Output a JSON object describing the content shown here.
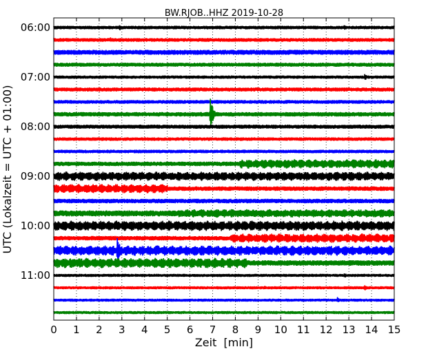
{
  "chart_data": {
    "type": "line",
    "title": "BW.RJOB..HHZ 2019-10-28",
    "xlabel": "Zeit  [min]",
    "ylabel": "UTC (Lokalzeit = UTC + 01:00)",
    "xlim": [
      0,
      15
    ],
    "x_ticks": [
      "0",
      "1",
      "2",
      "3",
      "4",
      "5",
      "6",
      "7",
      "8",
      "9",
      "10",
      "11",
      "12",
      "13",
      "14",
      "15"
    ],
    "y_ticks": [
      "06:00",
      "07:00",
      "08:00",
      "09:00",
      "10:00",
      "11:00"
    ],
    "y_tick_trace_index": [
      0,
      4,
      8,
      12,
      16,
      20
    ],
    "grid": "x-dotted",
    "trace_start": "06:00",
    "trace_minutes": 15,
    "colors": [
      "#000000",
      "#ff0000",
      "#0000ff",
      "#008000"
    ],
    "traces": [
      {
        "start": "06:00",
        "amplitude": 0.14,
        "events": [
          {
            "t": 2.9,
            "amp": 0.25
          },
          {
            "t": 12.8,
            "amp": 0.22
          }
        ]
      },
      {
        "start": "06:15",
        "amplitude": 0.15,
        "events": [
          {
            "t": 2.5,
            "amp": 0.25
          }
        ]
      },
      {
        "start": "06:30",
        "amplitude": 0.2,
        "events": []
      },
      {
        "start": "06:45",
        "amplitude": 0.16,
        "events": []
      },
      {
        "start": "07:00",
        "amplitude": 0.13,
        "events": [
          {
            "t": 13.7,
            "amp": 0.3
          }
        ]
      },
      {
        "start": "07:15",
        "amplitude": 0.16,
        "events": [
          {
            "t": 2.0,
            "amp": 0.25
          }
        ]
      },
      {
        "start": "07:30",
        "amplitude": 0.15,
        "events": []
      },
      {
        "start": "07:45",
        "amplitude": 0.18,
        "events": [
          {
            "t": 6.9,
            "amp": 1.45
          }
        ]
      },
      {
        "start": "08:00",
        "amplitude": 0.16,
        "events": []
      },
      {
        "start": "08:15",
        "amplitude": 0.14,
        "events": []
      },
      {
        "start": "08:30",
        "amplitude": 0.14,
        "events": []
      },
      {
        "start": "08:45",
        "amplitude": 0.18,
        "events": [],
        "swell": {
          "from": 8.2,
          "to": 15,
          "amp": 0.38
        }
      },
      {
        "start": "09:00",
        "amplitude": 0.18,
        "events": [],
        "swell": {
          "from": 0,
          "to": 15,
          "amp": 0.38
        }
      },
      {
        "start": "09:15",
        "amplitude": 0.18,
        "events": [],
        "swell": {
          "from": 0,
          "to": 5,
          "amp": 0.38
        }
      },
      {
        "start": "09:30",
        "amplitude": 0.18,
        "events": []
      },
      {
        "start": "09:45",
        "amplitude": 0.24,
        "events": [],
        "swell": {
          "from": 5.5,
          "to": 15,
          "amp": 0.34
        }
      },
      {
        "start": "10:00",
        "amplitude": 0.18,
        "events": [],
        "swell": {
          "from": 0,
          "to": 15,
          "amp": 0.42
        }
      },
      {
        "start": "10:15",
        "amplitude": 0.18,
        "events": [],
        "swell": {
          "from": 7.8,
          "to": 15,
          "amp": 0.38
        }
      },
      {
        "start": "10:30",
        "amplitude": 0.2,
        "events": [
          {
            "t": 2.8,
            "amp": 1.25
          }
        ],
        "swell": {
          "from": 0,
          "to": 15,
          "amp": 0.42
        }
      },
      {
        "start": "10:45",
        "amplitude": 0.22,
        "events": [],
        "swell": {
          "from": 0,
          "to": 8.5,
          "amp": 0.42
        }
      },
      {
        "start": "11:00",
        "amplitude": 0.12,
        "events": [
          {
            "t": 12.8,
            "amp": 0.25
          }
        ]
      },
      {
        "start": "11:15",
        "amplitude": 0.12,
        "events": [
          {
            "t": 13.7,
            "amp": 0.28
          },
          {
            "t": 9.3,
            "amp": 0.2
          }
        ]
      },
      {
        "start": "11:30",
        "amplitude": 0.12,
        "events": [
          {
            "t": 12.5,
            "amp": 0.25
          }
        ]
      },
      {
        "start": "11:45",
        "amplitude": 0.12,
        "events": []
      }
    ]
  }
}
